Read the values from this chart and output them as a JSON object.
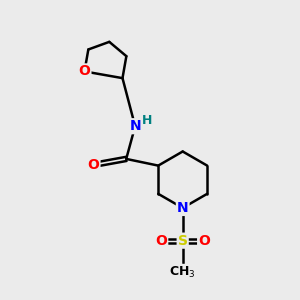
{
  "background_color": "#ebebeb",
  "atom_colors": {
    "O": "#ff0000",
    "N": "#0000ff",
    "H": "#008080",
    "S": "#cccc00",
    "C": "#000000"
  },
  "bond_color": "#000000",
  "bond_width": 1.8,
  "font_size_atom": 10
}
